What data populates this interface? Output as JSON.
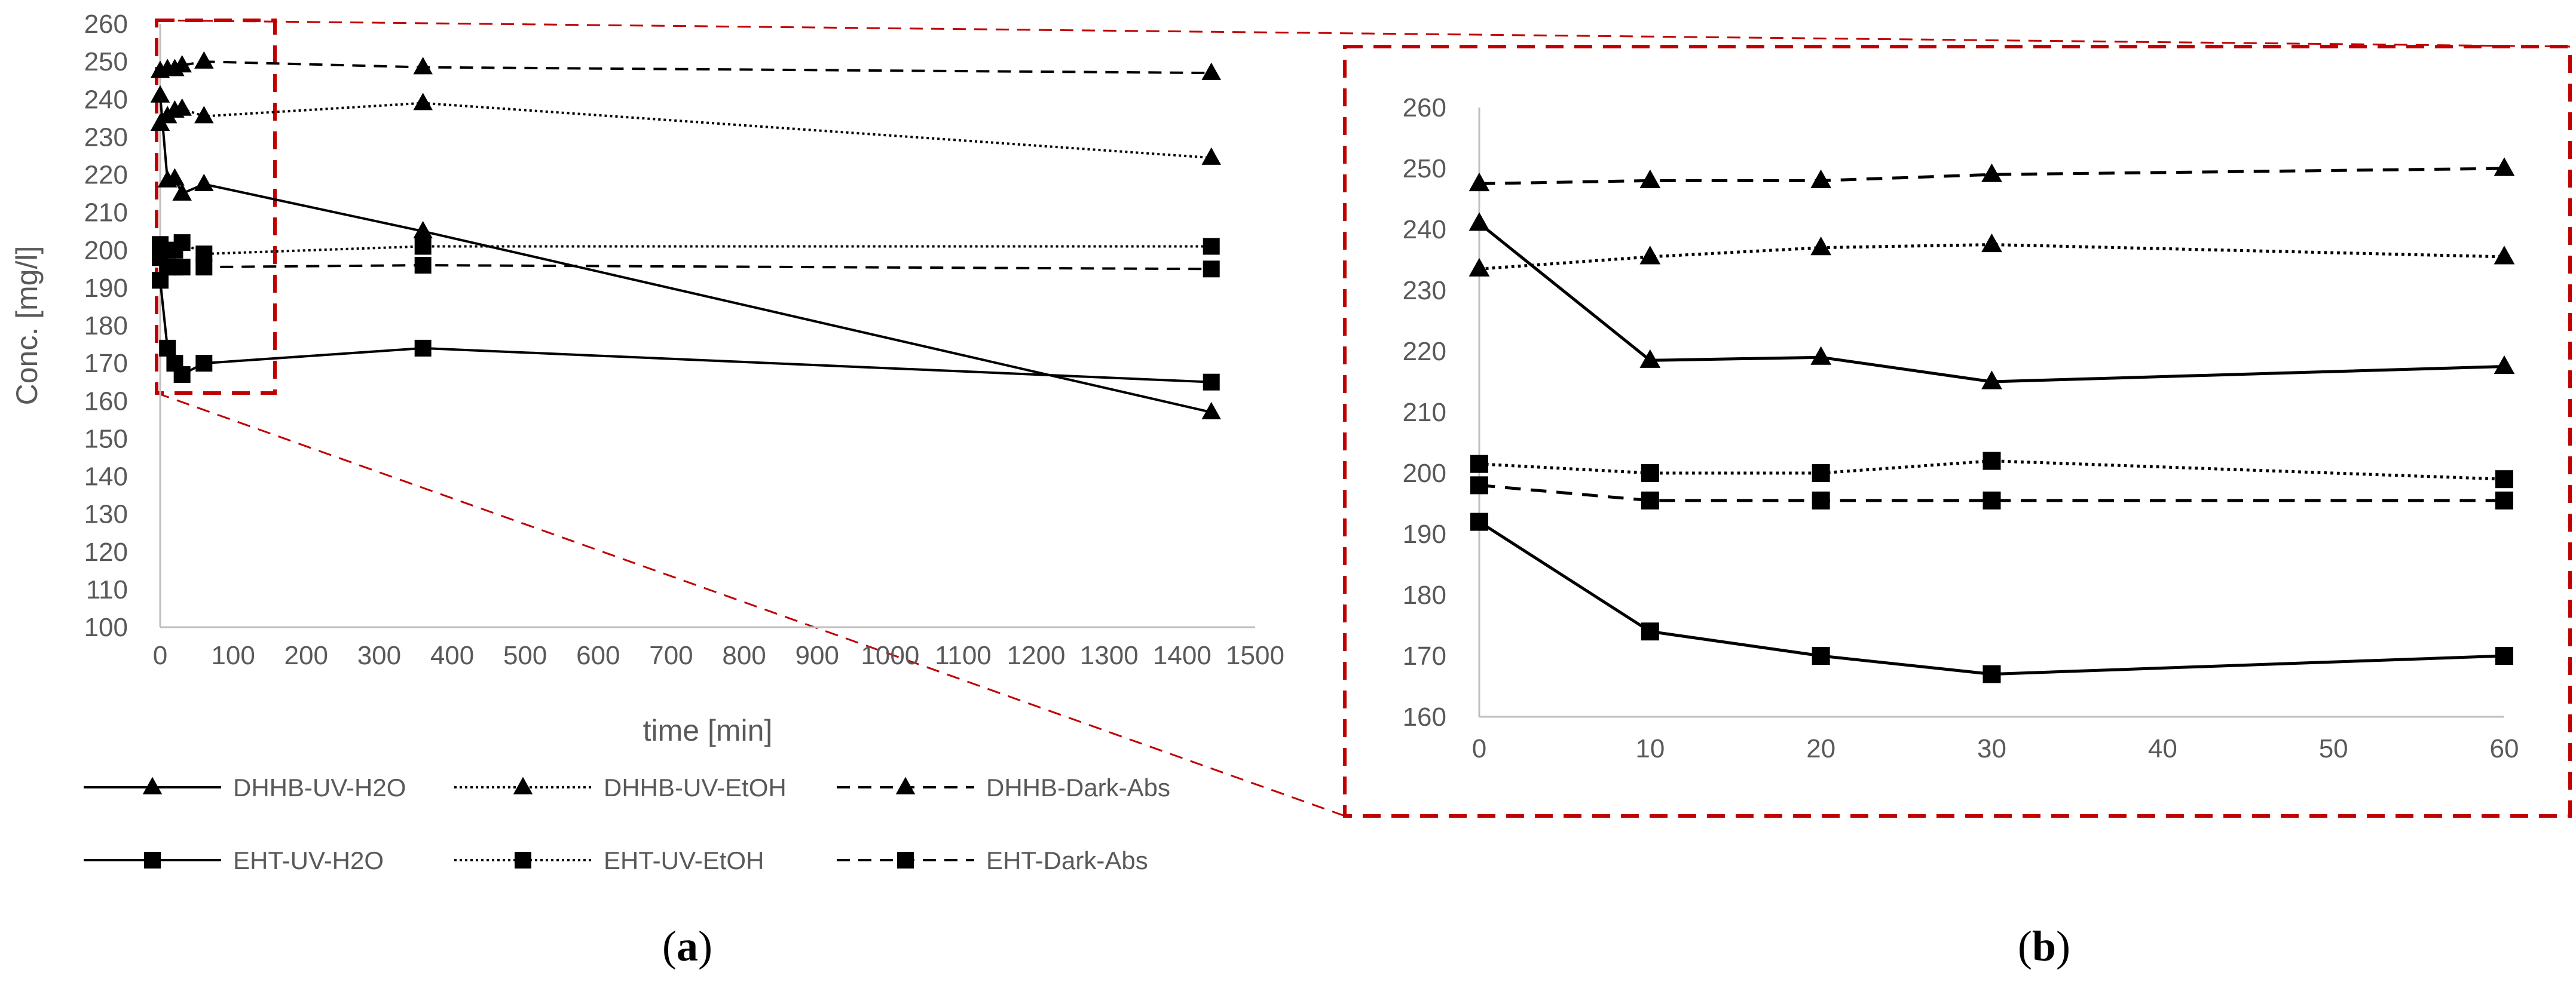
{
  "colors": {
    "series": "#000000",
    "axis": "#bfbfbf",
    "text": "#595959",
    "zoom": "#c00000"
  },
  "panel_labels": {
    "a": "a",
    "b": "b",
    "open": "(",
    "close": ")"
  },
  "chart_data": [
    {
      "id": "a",
      "type": "line",
      "xlabel": "time [min]",
      "ylabel": "Conc. [mg/l]",
      "xlim": [
        0,
        1500
      ],
      "ylim": [
        100,
        260
      ],
      "xticks": [
        0,
        100,
        200,
        300,
        400,
        500,
        600,
        700,
        800,
        900,
        1000,
        1100,
        1200,
        1300,
        1400,
        1500
      ],
      "yticks": [
        100,
        110,
        120,
        130,
        140,
        150,
        160,
        170,
        180,
        190,
        200,
        210,
        220,
        230,
        240,
        250,
        260
      ],
      "x": [
        0,
        10,
        20,
        30,
        60,
        360,
        1440
      ],
      "series": [
        {
          "name": "DHHB-UV-H2O",
          "marker": "triangle",
          "dash": "solid",
          "values": [
            241,
            218.5,
            219,
            215,
            217.5,
            205,
            157
          ]
        },
        {
          "name": "DHHB-UV-EtOH",
          "marker": "triangle",
          "dash": "dotted",
          "values": [
            233.5,
            235.5,
            237,
            237.5,
            235.5,
            239,
            224.5
          ]
        },
        {
          "name": "DHHB-Dark-Abs",
          "marker": "triangle",
          "dash": "dashed",
          "values": [
            247.5,
            248,
            248,
            249,
            250,
            248.5,
            247
          ]
        },
        {
          "name": "EHT-UV-H2O",
          "marker": "square",
          "dash": "solid",
          "values": [
            192,
            174,
            170,
            167,
            170,
            174,
            165
          ]
        },
        {
          "name": "EHT-UV-EtOH",
          "marker": "square",
          "dash": "dotted",
          "values": [
            201.5,
            200,
            200,
            202,
            199,
            201,
            201
          ]
        },
        {
          "name": "EHT-Dark-Abs",
          "marker": "square",
          "dash": "dashed",
          "values": [
            198,
            195.5,
            195.5,
            195.5,
            195.5,
            196,
            195
          ]
        }
      ],
      "legend": "bottom"
    },
    {
      "id": "b",
      "type": "line",
      "xlabel": "",
      "ylabel": "",
      "xlim": [
        0,
        60
      ],
      "ylim": [
        160,
        260
      ],
      "xticks": [
        0,
        10,
        20,
        30,
        40,
        50,
        60
      ],
      "yticks": [
        160,
        170,
        180,
        190,
        200,
        210,
        220,
        230,
        240,
        250,
        260
      ],
      "x": [
        0,
        10,
        20,
        30,
        60
      ],
      "series": [
        {
          "name": "DHHB-UV-H2O",
          "marker": "triangle",
          "dash": "solid",
          "values": [
            241,
            218.5,
            219,
            215,
            217.5
          ]
        },
        {
          "name": "DHHB-UV-EtOH",
          "marker": "triangle",
          "dash": "dotted",
          "values": [
            233.5,
            235.5,
            237,
            237.5,
            235.5
          ]
        },
        {
          "name": "DHHB-Dark-Abs",
          "marker": "triangle",
          "dash": "dashed",
          "values": [
            247.5,
            248,
            248,
            249,
            250
          ]
        },
        {
          "name": "EHT-UV-H2O",
          "marker": "square",
          "dash": "solid",
          "values": [
            192,
            174,
            170,
            167,
            170
          ]
        },
        {
          "name": "EHT-UV-EtOH",
          "marker": "square",
          "dash": "dotted",
          "values": [
            201.5,
            200,
            200,
            202,
            199
          ]
        },
        {
          "name": "EHT-Dark-Abs",
          "marker": "square",
          "dash": "dashed",
          "values": [
            198,
            195.5,
            195.5,
            195.5,
            195.5
          ]
        }
      ],
      "legend": "none"
    }
  ]
}
